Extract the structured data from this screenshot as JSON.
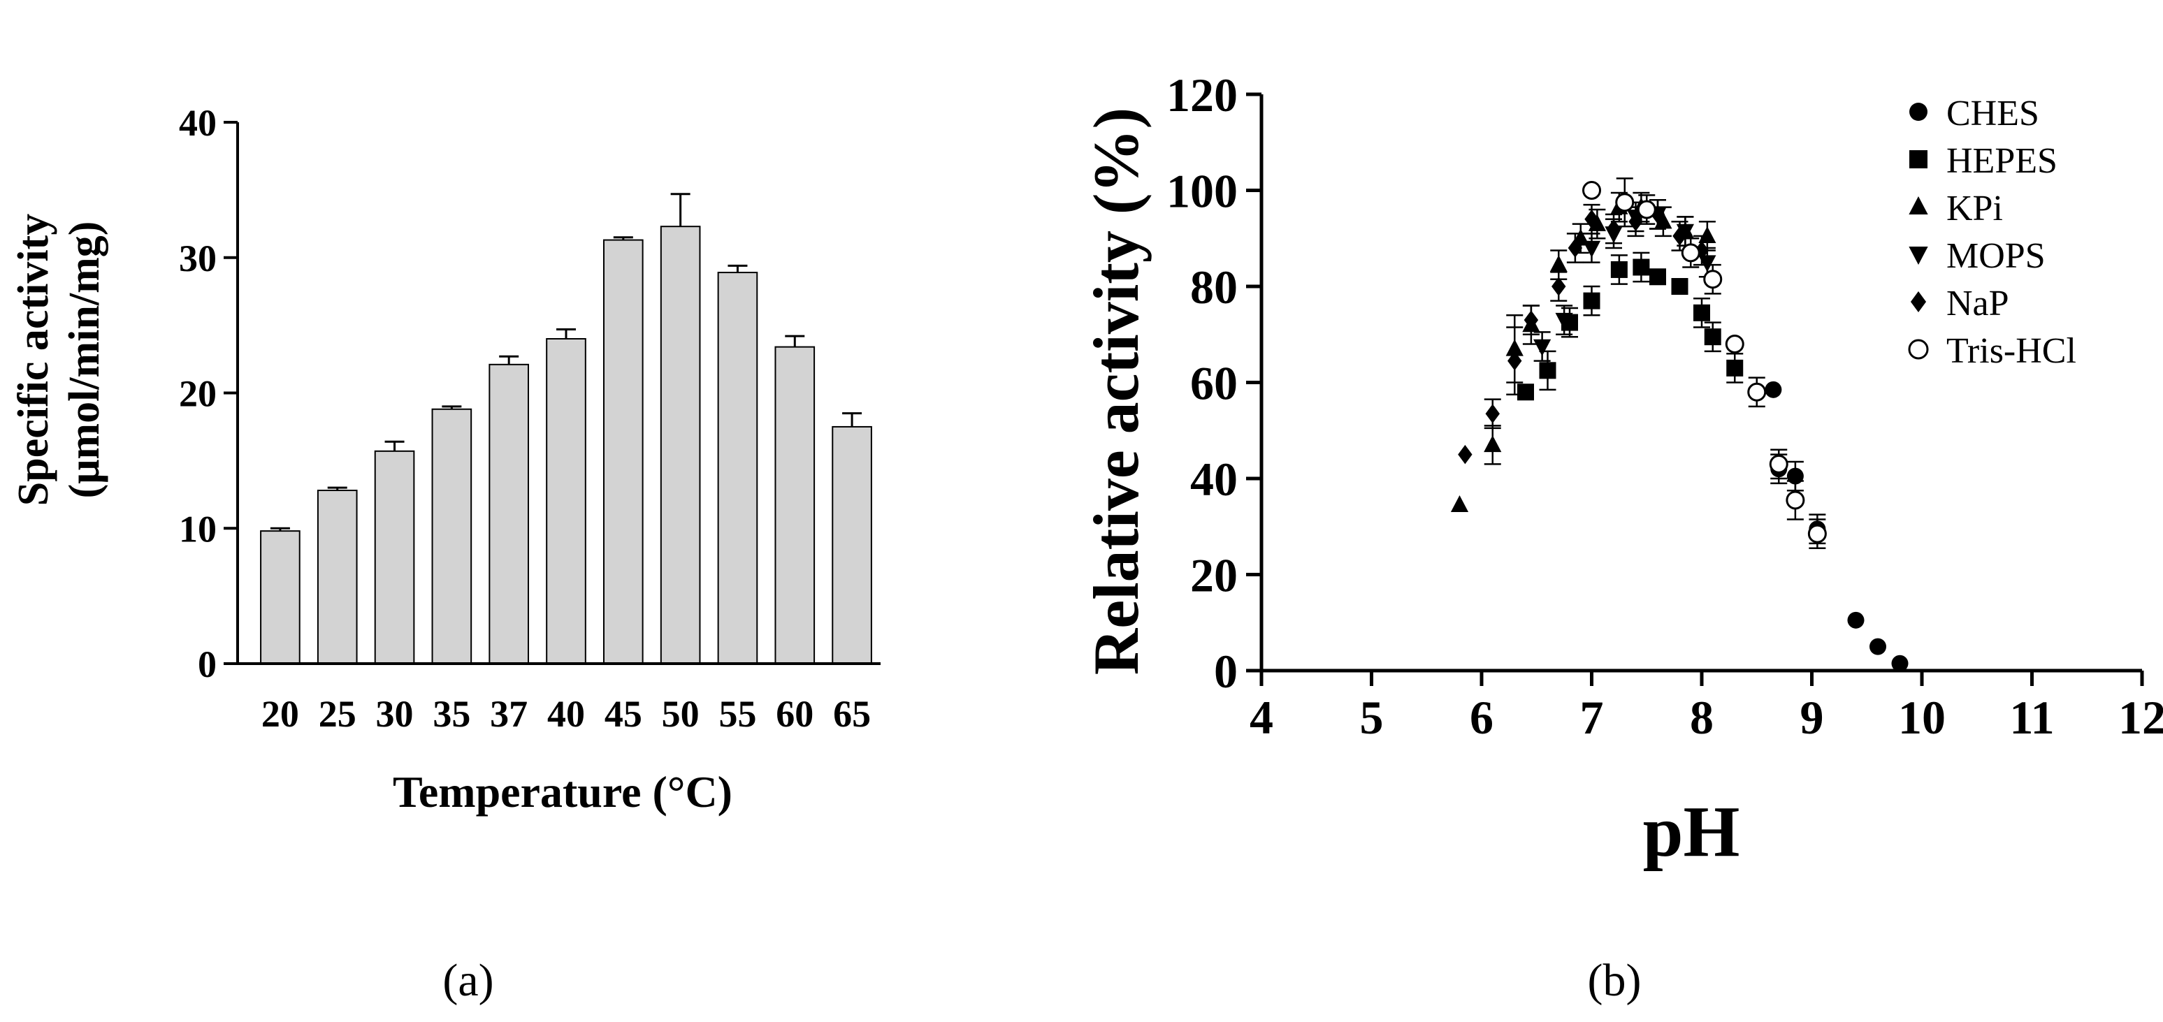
{
  "chart_data": [
    {
      "panel_label": "(a)",
      "type": "bar",
      "xlabel": "Temperature (°C)",
      "ylabel_line1": "Specific activity",
      "ylabel_line2": "(μmol/min/mg)",
      "categories": [
        "20",
        "25",
        "30",
        "35",
        "37",
        "40",
        "45",
        "50",
        "55",
        "60",
        "65"
      ],
      "values": [
        9.8,
        12.8,
        15.7,
        18.8,
        22.1,
        24.0,
        31.3,
        32.3,
        28.9,
        23.4,
        17.5
      ],
      "errors": [
        0.2,
        0.2,
        0.7,
        0.2,
        0.6,
        0.7,
        0.2,
        2.4,
        0.5,
        0.8,
        1.0
      ],
      "ylim": [
        0,
        40
      ],
      "yticks": [
        0,
        10,
        20,
        30,
        40
      ],
      "bar_color": "#d3d3d3"
    },
    {
      "panel_label": "(b)",
      "type": "scatter",
      "xlabel": "pH",
      "ylabel": "Relative activity (%)",
      "xlim": [
        4,
        12
      ],
      "ylim": [
        0,
        120
      ],
      "xticks": [
        4,
        5,
        6,
        7,
        8,
        9,
        10,
        11,
        12
      ],
      "yticks": [
        0,
        20,
        40,
        60,
        80,
        100,
        120
      ],
      "legend_position": "top-right",
      "series": [
        {
          "name": "CHES",
          "marker": "circle-filled",
          "points": [
            [
              8.65,
              58.5,
              0
            ],
            [
              8.7,
              42,
              3
            ],
            [
              8.85,
              40.5,
              3
            ],
            [
              9.05,
              29.5,
              3
            ],
            [
              9.4,
              10.5,
              0
            ],
            [
              9.6,
              5,
              0
            ],
            [
              9.8,
              1.5,
              0
            ]
          ]
        },
        {
          "name": "HEPES",
          "marker": "square",
          "points": [
            [
              6.4,
              58,
              0
            ],
            [
              6.6,
              62.5,
              4
            ],
            [
              6.8,
              72.5,
              3
            ],
            [
              7.0,
              77,
              3
            ],
            [
              7.25,
              83.5,
              3
            ],
            [
              7.45,
              84,
              3
            ],
            [
              7.6,
              82,
              0
            ],
            [
              7.8,
              80,
              0
            ],
            [
              8.0,
              74.5,
              3
            ],
            [
              8.1,
              69.5,
              3
            ],
            [
              8.3,
              63,
              3
            ]
          ]
        },
        {
          "name": "KPi",
          "marker": "triangle-up",
          "points": [
            [
              5.8,
              34.5,
              0
            ],
            [
              6.1,
              47,
              4
            ],
            [
              6.3,
              67,
              7
            ],
            [
              6.45,
              72,
              4
            ],
            [
              6.7,
              84.5,
              3
            ],
            [
              6.9,
              90,
              3
            ],
            [
              7.05,
              93,
              3
            ],
            [
              7.25,
              96.5,
              3
            ],
            [
              7.45,
              96.5,
              3
            ],
            [
              7.65,
              93.5,
              3
            ],
            [
              7.85,
              91.5,
              3
            ],
            [
              8.05,
              90.5,
              3
            ]
          ]
        },
        {
          "name": "MOPS",
          "marker": "triangle-down",
          "points": [
            [
              6.55,
              67.5,
              3
            ],
            [
              6.75,
              73,
              3
            ],
            [
              7.0,
              88,
              3
            ],
            [
              7.2,
              91,
              3
            ],
            [
              7.4,
              94.5,
              3
            ],
            [
              7.6,
              95,
              3
            ],
            [
              7.85,
              91.5,
              3
            ],
            [
              8.05,
              85,
              3
            ]
          ]
        },
        {
          "name": "NaP",
          "marker": "diamond",
          "points": [
            [
              5.85,
              45,
              0
            ],
            [
              6.1,
              53.5,
              3
            ],
            [
              6.3,
              64.5,
              7
            ],
            [
              6.45,
              73,
              3
            ],
            [
              6.7,
              80,
              3
            ],
            [
              6.85,
              88,
              3
            ],
            [
              7.0,
              94,
              3
            ],
            [
              7.2,
              92,
              3
            ],
            [
              7.4,
              93.5,
              3
            ],
            [
              7.6,
              95,
              3
            ],
            [
              7.8,
              90.5,
              3
            ],
            [
              8.0,
              87.5,
              3
            ]
          ]
        },
        {
          "name": "Tris-HCl",
          "marker": "circle-open",
          "points": [
            [
              7.0,
              100,
              0
            ],
            [
              7.3,
              97.5,
              5
            ],
            [
              7.5,
              96,
              3
            ],
            [
              7.9,
              87,
              3
            ],
            [
              8.1,
              81.5,
              3
            ],
            [
              8.3,
              68,
              0
            ],
            [
              8.5,
              58,
              3
            ],
            [
              8.7,
              43,
              3
            ],
            [
              8.85,
              35.5,
              4
            ],
            [
              9.05,
              28.5,
              3
            ]
          ]
        }
      ]
    }
  ]
}
